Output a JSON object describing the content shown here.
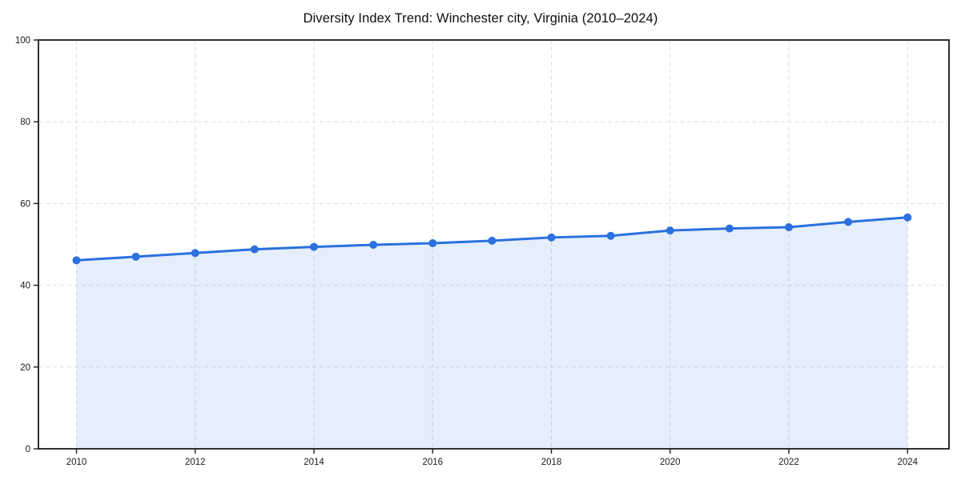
{
  "chart_data": {
    "type": "line",
    "title": "Diversity Index Trend: Winchester city, Virginia (2010–2024)",
    "xlabel": "",
    "ylabel": "",
    "x": [
      2010,
      2011,
      2012,
      2013,
      2014,
      2015,
      2016,
      2017,
      2018,
      2019,
      2020,
      2021,
      2022,
      2023,
      2024
    ],
    "series": [
      {
        "name": "Diversity Index",
        "values": [
          46.1,
          47.0,
          47.9,
          48.8,
          49.4,
          49.9,
          50.3,
          50.9,
          51.7,
          52.1,
          53.4,
          53.9,
          54.2,
          55.5,
          56.6
        ]
      }
    ],
    "xticks": [
      2010,
      2012,
      2014,
      2016,
      2018,
      2020,
      2022,
      2024
    ],
    "yticks": [
      0,
      20,
      40,
      60,
      80,
      100
    ],
    "xlim": [
      2009.37,
      2024.7
    ],
    "ylim": [
      0,
      100
    ],
    "grid": true,
    "grid_style": "dashed",
    "legend": "none",
    "line_color": "#2b70df",
    "marker_color": "#2b70df",
    "fill_color": "rgba(43, 112, 223, 0.12)",
    "grid_color": "#dedede",
    "spine_color": "#1a1a1a",
    "background_color": "#ffffff"
  }
}
